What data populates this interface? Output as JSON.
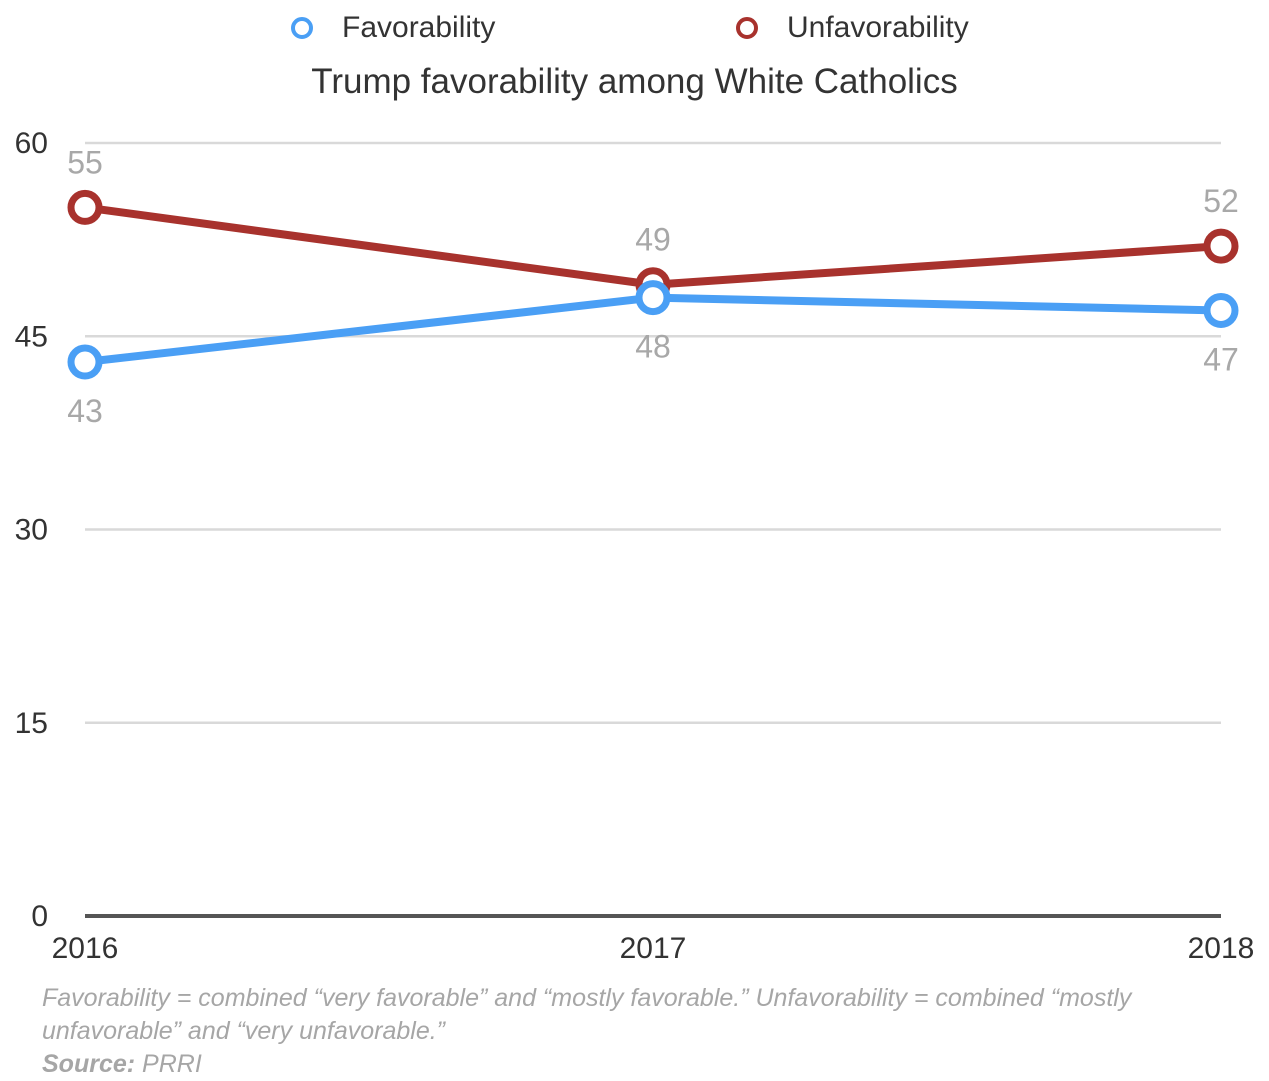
{
  "chart_data": {
    "type": "line",
    "title": "Trump favorability among White Catholics",
    "categories": [
      "2016",
      "2017",
      "2018"
    ],
    "series": [
      {
        "name": "Favorability",
        "values": [
          43,
          48,
          47
        ],
        "color": "#4a9ff5"
      },
      {
        "name": "Unfavorability",
        "values": [
          55,
          49,
          52
        ],
        "color": "#a8322d"
      }
    ],
    "ylim": [
      0,
      60
    ],
    "yticks": [
      0,
      15,
      30,
      45,
      60
    ],
    "grid": true,
    "legend_position": "top",
    "xlabel": "",
    "ylabel": ""
  },
  "footnote": "Favorability = combined “very favorable” and “mostly favorable.” Unfavorability = combined “mostly unfavorable” and “very unfavorable.”",
  "source": {
    "label": "Source:",
    "value": "PRRI"
  },
  "colors": {
    "grid": "#d9d9d9",
    "axis": "#555555",
    "text": "#333333",
    "data_label": "#a8a8a8",
    "footnote": "#a6a6a6"
  }
}
